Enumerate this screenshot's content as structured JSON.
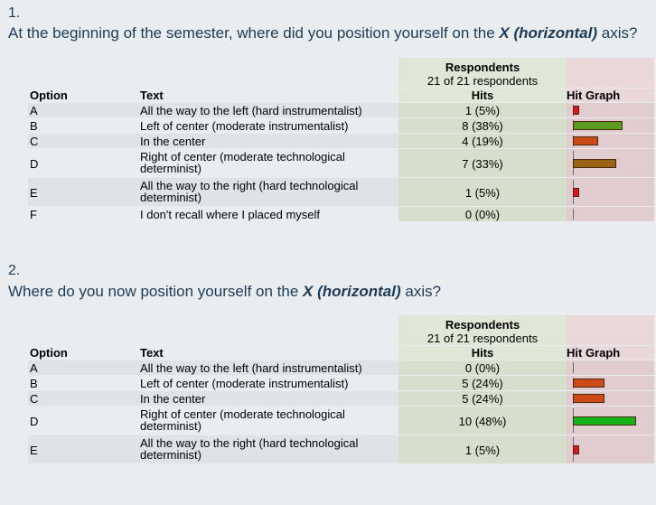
{
  "questions": [
    {
      "number": "1.",
      "title_pre": "At the beginning of the semester, where did you position yourself on the ",
      "title_bold": "X (horizontal)",
      "title_post": " axis?",
      "respondents_label": "Respondents",
      "respondents_count": "21 of 21 respondents",
      "columns": {
        "option": "Option",
        "text": "Text",
        "hits": "Hits",
        "graph": "Hit Graph"
      },
      "rows": [
        {
          "option": "A",
          "text": "All the way to the left (hard instrumentalist)",
          "hits": "1 (5%)",
          "pct": 5,
          "color": "#e0131b"
        },
        {
          "option": "B",
          "text": "Left of center (moderate instrumentalist)",
          "hits": "8 (38%)",
          "pct": 38,
          "color": "#5a9a1f"
        },
        {
          "option": "C",
          "text": "In the center",
          "hits": "4 (19%)",
          "pct": 19,
          "color": "#cc4a16"
        },
        {
          "option": "D",
          "text": "Right of center (moderate technological determinist)",
          "hits": "7 (33%)",
          "pct": 33,
          "color": "#9a6414"
        },
        {
          "option": "E",
          "text": "All the way to the right (hard technological determinist)",
          "hits": "1 (5%)",
          "pct": 5,
          "color": "#e0131b"
        },
        {
          "option": "F",
          "text": "I don't recall where I placed myself",
          "hits": "0 (0%)",
          "pct": 0,
          "color": "#e0131b"
        }
      ]
    },
    {
      "number": "2.",
      "title_pre": "Where do you now position yourself on the ",
      "title_bold": "X (horizontal)",
      "title_post": " axis?",
      "respondents_label": "Respondents",
      "respondents_count": "21 of 21 respondents",
      "columns": {
        "option": "Option",
        "text": "Text",
        "hits": "Hits",
        "graph": "Hit Graph"
      },
      "rows": [
        {
          "option": "A",
          "text": "All the way to the left (hard instrumentalist)",
          "hits": "0 (0%)",
          "pct": 0,
          "color": "#e0131b"
        },
        {
          "option": "B",
          "text": "Left of center (moderate instrumentalist)",
          "hits": "5 (24%)",
          "pct": 24,
          "color": "#cc4a16"
        },
        {
          "option": "C",
          "text": "In the center",
          "hits": "5 (24%)",
          "pct": 24,
          "color": "#cc4a16"
        },
        {
          "option": "D",
          "text": "Right of center (moderate technological determinist)",
          "hits": "10 (48%)",
          "pct": 48,
          "color": "#15b318"
        },
        {
          "option": "E",
          "text": "All the way to the right (hard technological determinist)",
          "hits": "1 (5%)",
          "pct": 5,
          "color": "#e0131b"
        }
      ]
    }
  ]
}
